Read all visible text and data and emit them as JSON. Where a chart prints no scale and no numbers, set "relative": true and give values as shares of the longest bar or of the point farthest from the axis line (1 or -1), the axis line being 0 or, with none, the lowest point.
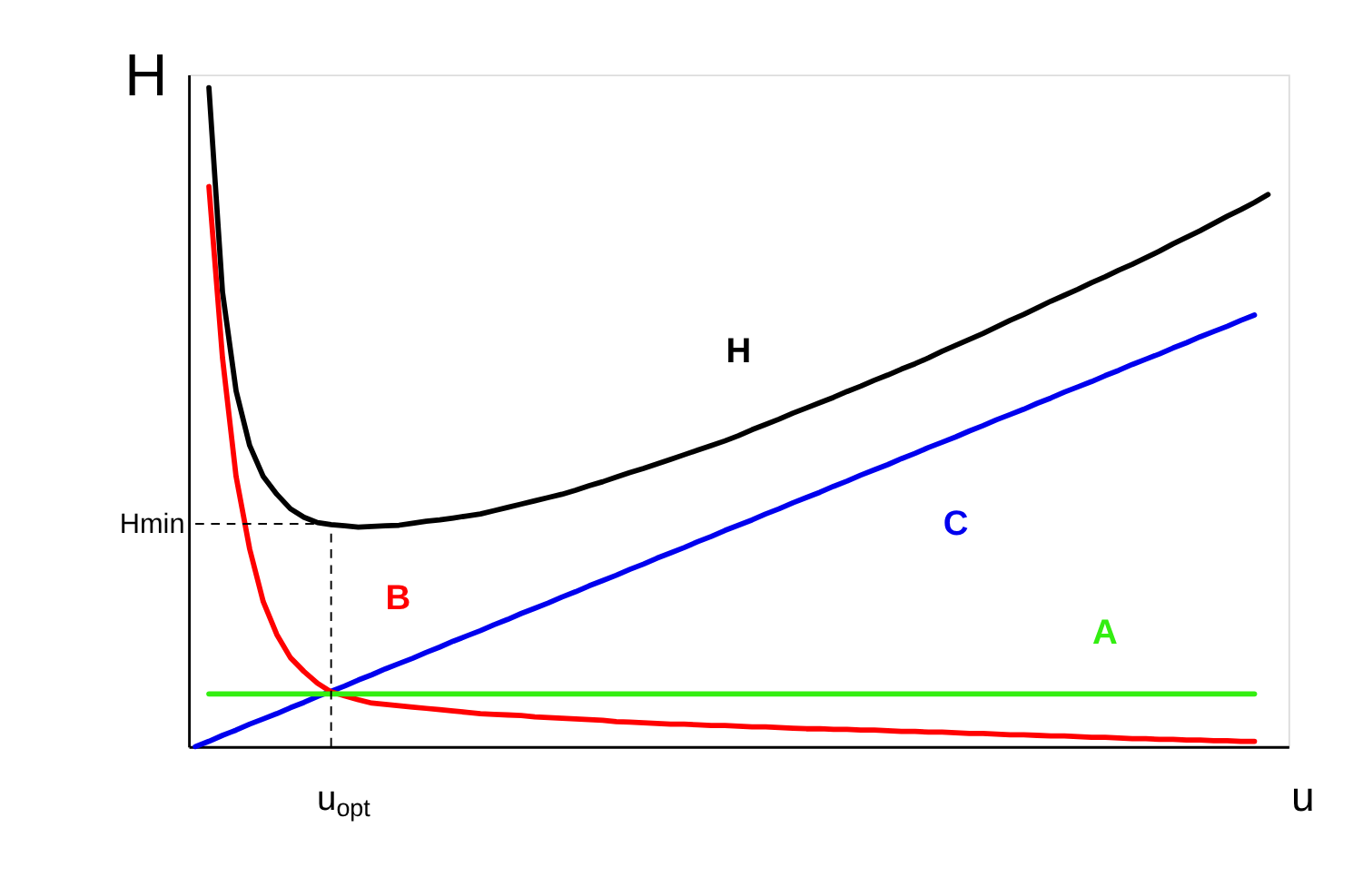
{
  "chart_data": {
    "type": "line",
    "relative": true,
    "xlabel": "u",
    "ylabel": "H",
    "grid": false,
    "marker": "none",
    "line_style": "solid",
    "categories": [
      null,
      null,
      null,
      null,
      null,
      null,
      null,
      null,
      null,
      null,
      null,
      null,
      null,
      null,
      null,
      null,
      null,
      null,
      null,
      null,
      null,
      null,
      null,
      null,
      null,
      null,
      null,
      null,
      null,
      null,
      null,
      null,
      null,
      null,
      null,
      null,
      null,
      null,
      null,
      null,
      null,
      null,
      null,
      null,
      null,
      null,
      null,
      null,
      null,
      null,
      null,
      null,
      null,
      null,
      null,
      null,
      null,
      null,
      null,
      null,
      null,
      null,
      null,
      null,
      null,
      null,
      null,
      null,
      null,
      null,
      null,
      null,
      null,
      null,
      null,
      null,
      null,
      null,
      null,
      null,
      null
    ],
    "series": [
      {
        "name": "H",
        "color": "#000000",
        "values": [
          null,
          1.0,
          0.69,
          0.54,
          0.457,
          0.41,
          0.383,
          0.361,
          0.348,
          0.34,
          0.337,
          0.335,
          0.333,
          0.334,
          0.335,
          0.336,
          0.339,
          0.342,
          0.344,
          0.347,
          0.35,
          0.353,
          0.358,
          0.363,
          0.368,
          0.373,
          0.378,
          0.383,
          0.389,
          0.396,
          0.402,
          0.409,
          0.416,
          0.422,
          0.429,
          0.436,
          0.443,
          0.45,
          0.457,
          0.464,
          0.472,
          0.481,
          0.489,
          0.497,
          0.506,
          0.514,
          0.522,
          0.53,
          0.539,
          0.547,
          0.556,
          0.564,
          0.573,
          0.581,
          0.59,
          0.6,
          0.609,
          0.618,
          0.627,
          0.637,
          0.647,
          0.656,
          0.666,
          0.676,
          0.685,
          0.694,
          0.704,
          0.713,
          0.723,
          0.732,
          0.742,
          0.752,
          0.763,
          0.773,
          0.783,
          0.794,
          0.805,
          0.815,
          0.826,
          0.838,
          null
        ]
      },
      {
        "name": "C",
        "color": "#0000ee",
        "values": [
          0,
          0.008,
          0.017,
          0.025,
          0.034,
          0.042,
          0.05,
          0.059,
          0.067,
          0.076,
          0.084,
          0.092,
          0.101,
          0.109,
          0.118,
          0.126,
          0.134,
          0.143,
          0.151,
          0.16,
          0.168,
          0.176,
          0.185,
          0.193,
          0.202,
          0.21,
          0.218,
          0.227,
          0.235,
          0.244,
          0.252,
          0.26,
          0.269,
          0.277,
          0.286,
          0.294,
          0.302,
          0.311,
          0.319,
          0.328,
          0.336,
          0.344,
          0.353,
          0.361,
          0.37,
          0.378,
          0.386,
          0.395,
          0.403,
          0.412,
          0.42,
          0.428,
          0.437,
          0.445,
          0.454,
          0.462,
          0.47,
          0.479,
          0.487,
          0.496,
          0.504,
          0.512,
          0.521,
          0.529,
          0.538,
          0.546,
          0.554,
          0.563,
          0.571,
          0.58,
          0.588,
          0.596,
          0.605,
          0.613,
          0.622,
          0.63,
          0.638,
          0.647,
          0.655,
          null,
          null
        ]
      },
      {
        "name": "B",
        "color": "#ff0000",
        "values": [
          null,
          0.85,
          0.59,
          0.41,
          0.3,
          0.22,
          0.17,
          0.135,
          0.114,
          0.096,
          0.083,
          0.077,
          0.071,
          0.066,
          0.064,
          0.062,
          0.06,
          0.058,
          0.056,
          0.054,
          0.052,
          0.05,
          0.049,
          0.048,
          0.047,
          0.045,
          0.044,
          0.043,
          0.042,
          0.041,
          0.04,
          0.038,
          0.037,
          0.036,
          0.035,
          0.034,
          0.034,
          0.033,
          0.032,
          0.032,
          0.031,
          0.03,
          0.03,
          0.029,
          0.028,
          0.027,
          0.027,
          0.026,
          0.026,
          0.025,
          0.025,
          0.024,
          0.023,
          0.023,
          0.022,
          0.022,
          0.021,
          0.02,
          0.02,
          0.019,
          0.018,
          0.018,
          0.017,
          0.016,
          0.016,
          0.015,
          0.014,
          0.014,
          0.013,
          0.012,
          0.012,
          0.011,
          0.011,
          0.01,
          0.01,
          0.009,
          0.009,
          0.008,
          0.008,
          null,
          null
        ]
      },
      {
        "name": "A",
        "color": "#33ee11",
        "values": [
          null,
          0.08,
          0.08,
          0.08,
          0.08,
          0.08,
          0.08,
          0.08,
          0.08,
          0.08,
          0.08,
          0.08,
          0.08,
          0.08,
          0.08,
          0.08,
          0.08,
          0.08,
          0.08,
          0.08,
          0.08,
          0.08,
          0.08,
          0.08,
          0.08,
          0.08,
          0.08,
          0.08,
          0.08,
          0.08,
          0.08,
          0.08,
          0.08,
          0.08,
          0.08,
          0.08,
          0.08,
          0.08,
          0.08,
          0.08,
          0.08,
          0.08,
          0.08,
          0.08,
          0.08,
          0.08,
          0.08,
          0.08,
          0.08,
          0.08,
          0.08,
          0.08,
          0.08,
          0.08,
          0.08,
          0.08,
          0.08,
          0.08,
          0.08,
          0.08,
          0.08,
          0.08,
          0.08,
          0.08,
          0.08,
          0.08,
          0.08,
          0.08,
          0.08,
          0.08,
          0.08,
          0.08,
          0.08,
          0.08,
          0.08,
          0.08,
          0.08,
          0.08,
          0.08,
          null,
          null
        ]
      }
    ],
    "ref_lines": [
      {
        "axis": "y",
        "value": 0.338,
        "label": "Hmin",
        "line_style": "dashed"
      },
      {
        "axis": "x",
        "label": "u$_{opt}$",
        "line_style": "dashed"
      }
    ]
  }
}
